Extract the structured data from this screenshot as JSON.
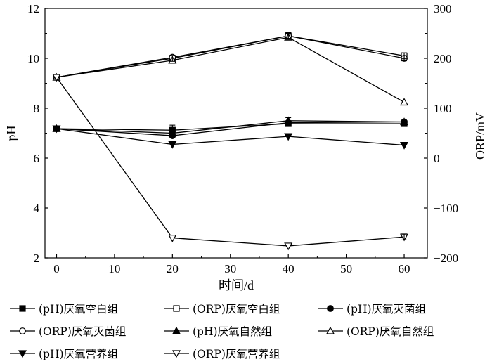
{
  "chart_data": {
    "type": "line",
    "x": [
      0,
      20,
      40,
      60
    ],
    "xlabel": "时间/d",
    "ylabel_left": "pH",
    "ylabel_right": "ORP/mV",
    "xlim": [
      -2,
      64
    ],
    "ylim_left": [
      2,
      12
    ],
    "ylim_right": [
      -200,
      300
    ],
    "xticks": [
      "0",
      "10",
      "20",
      "30",
      "40",
      "50",
      "60"
    ],
    "yticks_left": [
      "2",
      "4",
      "6",
      "8",
      "10",
      "12"
    ],
    "yticks_right": [
      "−200",
      "−100",
      "0",
      "100",
      "200",
      "300"
    ],
    "legend_position": "bottom",
    "series": [
      {
        "name": "(pH)厌氧空白组",
        "axis": "left",
        "marker": "square-filled",
        "values": [
          7.18,
          7.12,
          7.38,
          7.38
        ]
      },
      {
        "name": "(ORP)厌氧空白组",
        "axis": "right",
        "marker": "square-open",
        "values": [
          162,
          200,
          245,
          205
        ]
      },
      {
        "name": "(pH)厌氧灭菌组",
        "axis": "left",
        "marker": "circle-filled",
        "values": [
          7.18,
          6.9,
          7.42,
          7.45
        ]
      },
      {
        "name": "(ORP)厌氧灭菌组",
        "axis": "right",
        "marker": "circle-open",
        "values": [
          162,
          202,
          245,
          200
        ]
      },
      {
        "name": "(pH)厌氧自然组",
        "axis": "left",
        "marker": "triangle-up-filled",
        "values": [
          7.18,
          7.0,
          7.5,
          7.45
        ]
      },
      {
        "name": "(ORP)厌氧自然组",
        "axis": "right",
        "marker": "triangle-up-open",
        "values": [
          162,
          196,
          242,
          112
        ]
      },
      {
        "name": "(pH)厌氧营养组",
        "axis": "left",
        "marker": "triangle-down-filled",
        "values": [
          7.18,
          6.55,
          6.87,
          6.52
        ]
      },
      {
        "name": "(ORP)厌氧营养组",
        "axis": "right",
        "marker": "triangle-down-open",
        "values": [
          162,
          -160,
          -176,
          -158
        ]
      }
    ],
    "error_bars": [
      {
        "series": "(ORP)厌氧空白组",
        "x": 20,
        "err": 6
      },
      {
        "series": "(ORP)厌氧空白组",
        "x": 40,
        "err": 7
      },
      {
        "series": "(ORP)厌氧空白组",
        "x": 60,
        "err": 6
      },
      {
        "series": "(ORP)厌氧灭菌组",
        "x": 40,
        "err": 5
      },
      {
        "series": "(ORP)厌氧灭菌组",
        "x": 60,
        "err": 5
      },
      {
        "series": "(pH)厌氧空白组",
        "x": 20,
        "err": 0.2
      },
      {
        "series": "(pH)厌氧自然组",
        "x": 40,
        "err": 0.12
      },
      {
        "series": "(ORP)厌氧营养组",
        "x": 60,
        "err": 6
      }
    ]
  }
}
